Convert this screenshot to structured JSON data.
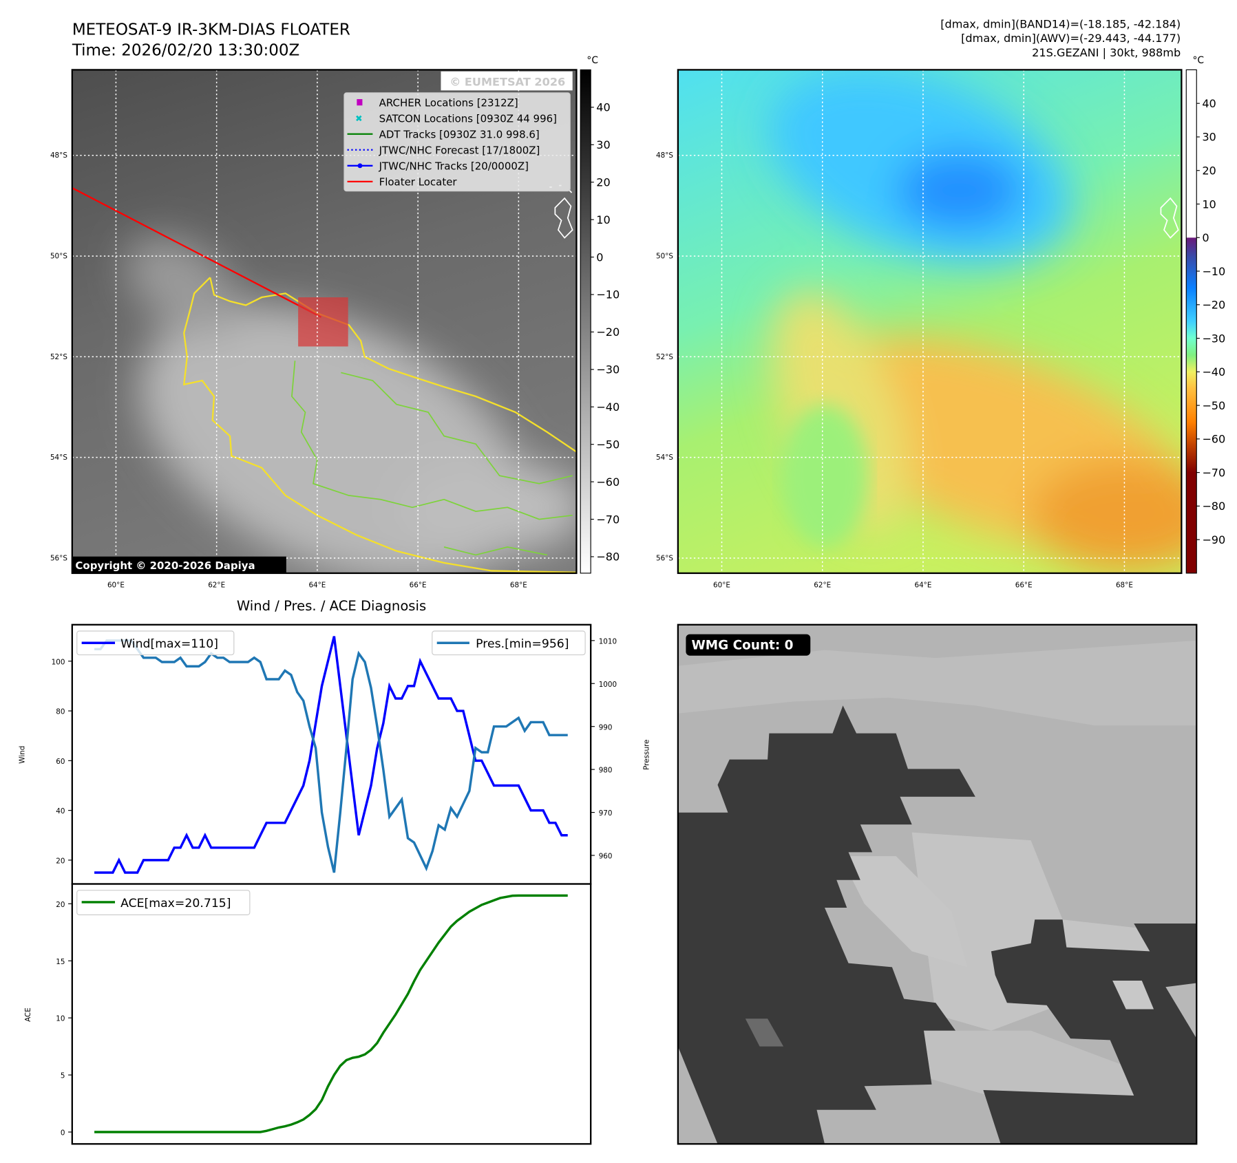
{
  "header": {
    "title": "METEOSAT-9 IR-3KM-DIAS FLOATER",
    "time": "Time: 2026/02/20 13:30:00Z",
    "band14_range": "[dmax, dmin](BAND14)=(-18.185, -42.184)",
    "awv_range": "[dmax, dmin](AWV)=(-29.443, -44.177)",
    "storm": "21S.GEZANI | 30kt, 988mb"
  },
  "maps": {
    "lat_ticks": [
      "48°S",
      "50°S",
      "52°S",
      "54°S",
      "56°S"
    ],
    "lat_values": [
      48,
      50,
      52,
      54,
      56
    ],
    "lon_ticks": [
      "60°E",
      "62°E",
      "64°E",
      "66°E",
      "68°E"
    ],
    "lon_values": [
      60,
      62,
      64,
      66,
      68
    ],
    "lon_range": [
      59.13,
      69.15
    ],
    "lat_range": [
      46.3,
      56.3
    ],
    "watermark": "© EUMETSAT 2026",
    "copyright": "Copyright © 2020-2026 Dapiya",
    "legend": [
      {
        "label": "ARCHER Locations [2312Z]",
        "color": "#c000c0",
        "marker": "square"
      },
      {
        "label": "SATCON Locations [0930Z 44 996]",
        "color": "#00c0c0",
        "marker": "x"
      },
      {
        "label": "ADT Tracks [0930Z 31.0 998.6]",
        "color": "#008000",
        "marker": "line"
      },
      {
        "label": "JTWC/NHC Forecast [17/1800Z]",
        "color": "#0000ff",
        "marker": "dotted"
      },
      {
        "label": "JTWC/NHC Tracks [20/0000Z]",
        "color": "#0000ff",
        "marker": "line-dot"
      },
      {
        "label": "Floater Locater",
        "color": "#ff0000",
        "marker": "line"
      }
    ],
    "ir_colorbar": {
      "unit": "°C",
      "range": [
        -84.4,
        50
      ],
      "ticks": [
        "40",
        "30",
        "20",
        "10",
        "0",
        "−10",
        "−20",
        "−30",
        "−40",
        "−50",
        "−60",
        "−70",
        "−80"
      ],
      "tick_values": [
        40,
        30,
        20,
        10,
        0,
        -10,
        -20,
        -30,
        -40,
        -50,
        -60,
        -70,
        -80
      ]
    },
    "awv_colorbar": {
      "unit": "°C",
      "range": [
        -100,
        50
      ],
      "ticks": [
        "40",
        "30",
        "20",
        "10",
        "0",
        "−10",
        "−20",
        "−30",
        "−40",
        "−50",
        "−60",
        "−70",
        "−80",
        "−90"
      ],
      "tick_values": [
        40,
        30,
        20,
        10,
        0,
        -10,
        -20,
        -30,
        -40,
        -50,
        -60,
        -70,
        -80,
        -90
      ]
    }
  },
  "chart_data": [
    {
      "type": "line",
      "title": "Wind / Pres. / ACE Diagnosis",
      "ylabel": "Wind",
      "y2label": "Pressure",
      "ylim": [
        10,
        115
      ],
      "y2lim": [
        954,
        1013
      ],
      "yticks": [
        "20",
        "40",
        "60",
        "80",
        "100"
      ],
      "ytick_values": [
        20,
        40,
        60,
        80,
        100
      ],
      "y2ticks": [
        "960",
        "970",
        "980",
        "990",
        "1000",
        "1010"
      ],
      "y2tick_values": [
        960,
        970,
        980,
        990,
        1000,
        1010
      ],
      "series": [
        {
          "name": "Wind[max=110]",
          "color": "#0000ff",
          "axis": "left",
          "legend": "top-left",
          "values": [
            15,
            15,
            15,
            15,
            20,
            15,
            15,
            15,
            20,
            20,
            20,
            20,
            20,
            25,
            25,
            30,
            25,
            25,
            30,
            25,
            25,
            25,
            25,
            25,
            25,
            25,
            25,
            30,
            35,
            35,
            35,
            35,
            40,
            45,
            50,
            60,
            75,
            90,
            100,
            110,
            90,
            70,
            50,
            30,
            40,
            50,
            65,
            75,
            90,
            85,
            85,
            90,
            90,
            100,
            95,
            90,
            85,
            85,
            85,
            80,
            80,
            70,
            60,
            60,
            55,
            50,
            50,
            50,
            50,
            50,
            45,
            40,
            40,
            40,
            35,
            35,
            30,
            30
          ]
        },
        {
          "name": "Pres.[min=956]",
          "color": "#1f77b4",
          "axis": "right",
          "legend": "top-right",
          "values": [
            1008,
            1008,
            1010,
            1010,
            1010,
            1010,
            1010,
            1008,
            1006,
            1006,
            1006,
            1005,
            1005,
            1005,
            1006,
            1004,
            1004,
            1004,
            1005,
            1007,
            1006,
            1006,
            1005,
            1005,
            1005,
            1005,
            1006,
            1005,
            1001,
            1001,
            1001,
            1003,
            1002,
            998,
            996,
            990,
            985,
            970,
            962,
            956,
            970,
            985,
            1001,
            1007,
            1005,
            999,
            990,
            980,
            969,
            971,
            973,
            964,
            963,
            960,
            957,
            961,
            967,
            966,
            971,
            969,
            972,
            975,
            985,
            984,
            984,
            990,
            990,
            990,
            991,
            992,
            989,
            991,
            991,
            991,
            988,
            988,
            988,
            988
          ]
        }
      ]
    },
    {
      "type": "line",
      "ylabel": "ACE",
      "ylim": [
        -1,
        22
      ],
      "yticks": [
        "0",
        "5",
        "10",
        "15",
        "20"
      ],
      "ytick_values": [
        0,
        5,
        10,
        15,
        20
      ],
      "series": [
        {
          "name": "ACE[max=20.715]",
          "color": "#008000",
          "legend": "top-left",
          "values": [
            0,
            0,
            0,
            0,
            0,
            0,
            0,
            0,
            0,
            0,
            0,
            0,
            0,
            0,
            0,
            0,
            0,
            0,
            0,
            0,
            0,
            0,
            0,
            0,
            0,
            0,
            0,
            0,
            0.1,
            0.25,
            0.4,
            0.5,
            0.65,
            0.85,
            1.1,
            1.5,
            2.0,
            2.8,
            4.0,
            5.0,
            5.8,
            6.3,
            6.5,
            6.6,
            6.8,
            7.2,
            7.8,
            8.7,
            9.5,
            10.3,
            11.2,
            12.1,
            13.2,
            14.2,
            15.0,
            15.8,
            16.6,
            17.3,
            18.0,
            18.5,
            18.9,
            19.3,
            19.6,
            19.9,
            20.1,
            20.3,
            20.5,
            20.6,
            20.7,
            20.715,
            20.715,
            20.715,
            20.715,
            20.715,
            20.715,
            20.715,
            20.715,
            20.715
          ]
        }
      ]
    }
  ],
  "wmg": {
    "label": "WMG Count: 0"
  }
}
